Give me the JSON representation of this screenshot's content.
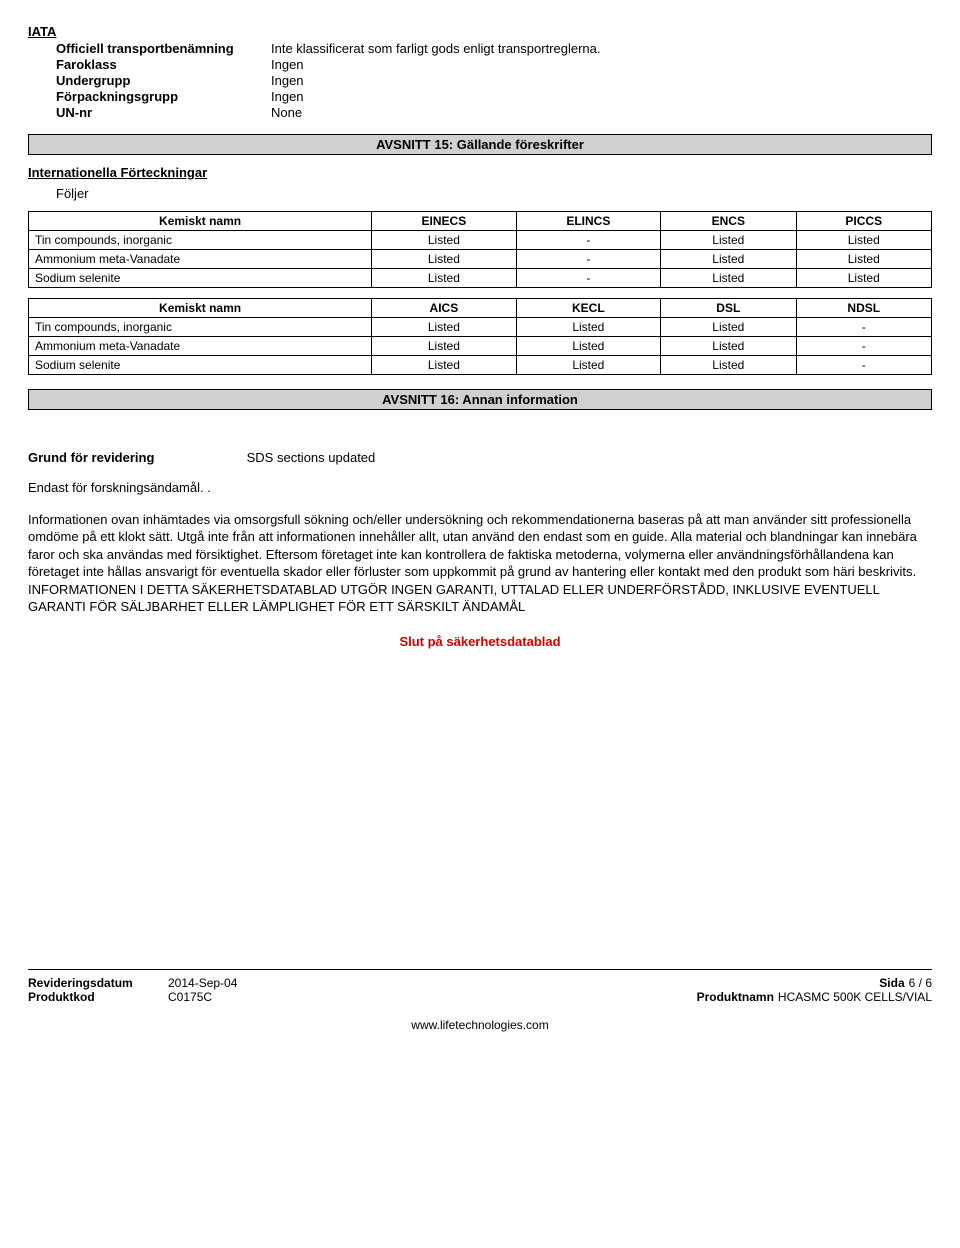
{
  "iata": {
    "heading": "IATA",
    "rows": [
      {
        "label": "Officiell transportbenämning",
        "value": "Inte klassificerat som farligt gods enligt transportreglerna."
      },
      {
        "label": "Faroklass",
        "value": "Ingen"
      },
      {
        "label": "Undergrupp",
        "value": "Ingen"
      },
      {
        "label": "Förpackningsgrupp",
        "value": "Ingen"
      },
      {
        "label": "UN-nr",
        "value": "None"
      }
    ]
  },
  "section15": {
    "title": "AVSNITT 15: Gällande föreskrifter",
    "intl_label": "Internationella Förteckningar",
    "follows": "Följer",
    "table1": {
      "headers": [
        "Kemiskt namn",
        "EINECS",
        "ELINCS",
        "ENCS",
        "PICCS"
      ],
      "rows": [
        [
          "Tin compounds, inorganic",
          "Listed",
          "-",
          "Listed",
          "Listed"
        ],
        [
          "Ammonium meta-Vanadate",
          "Listed",
          "-",
          "Listed",
          "Listed"
        ],
        [
          "Sodium selenite",
          "Listed",
          "-",
          "Listed",
          "Listed"
        ]
      ]
    },
    "table2": {
      "headers": [
        "Kemiskt namn",
        "AICS",
        "KECL",
        "DSL",
        "NDSL"
      ],
      "rows": [
        [
          "Tin compounds, inorganic",
          "Listed",
          "Listed",
          "Listed",
          "-"
        ],
        [
          "Ammonium meta-Vanadate",
          "Listed",
          "Listed",
          "Listed",
          "-"
        ],
        [
          "Sodium selenite",
          "Listed",
          "Listed",
          "Listed",
          "-"
        ]
      ]
    }
  },
  "section16": {
    "title": "AVSNITT 16: Annan information",
    "revision_label": "Grund för revidering",
    "revision_value": "SDS sections updated",
    "research_only": "Endast för forskningsändamål.  .",
    "disclaimer": "Informationen ovan inhämtades via omsorgsfull sökning och/eller undersökning och rekommendationerna baseras på att man använder sitt professionella omdöme på ett klokt sätt. Utgå inte från att informationen innehåller allt, utan använd den endast som en guide. Alla material och blandningar kan innebära faror och ska användas med försiktighet. Eftersom företaget inte kan kontrollera de faktiska metoderna, volymerna eller användningsförhållandena kan företaget inte hållas ansvarigt för eventuella skador eller förluster som uppkommit på grund av hantering eller kontakt med den produkt som häri beskrivits.",
    "warranty": "INFORMATIONEN I DETTA SÄKERHETSDATABLAD UTGÖR INGEN GARANTI, UTTALAD ELLER UNDERFÖRSTÅDD, INKLUSIVE EVENTUELL GARANTI FÖR SÄLJBARHET ELLER LÄMPLIGHET FÖR ETT SÄRSKILT ÄNDAMÅL",
    "end": "Slut på säkerhetsdatablad"
  },
  "footer": {
    "rev_date_label": "Revideringsdatum",
    "rev_date": "2014-Sep-04",
    "code_label": "Produktkod",
    "code": "C0175C",
    "page_label": "Sida",
    "page": "6 / 6",
    "product_label": "Produktnamn",
    "product": "HCASMC 500K CELLS/VIAL",
    "url": "www.lifetechnologies.com"
  }
}
